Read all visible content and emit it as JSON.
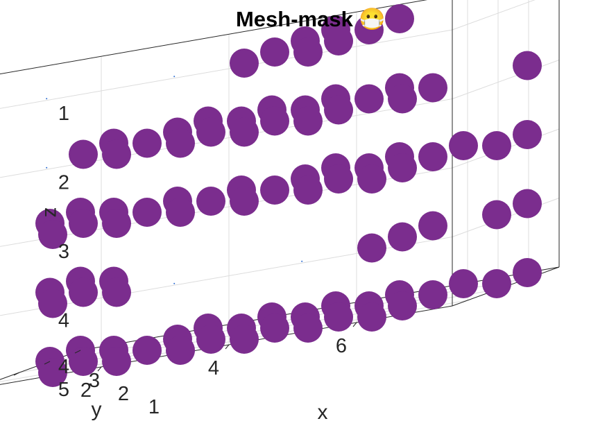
{
  "chart_data": {
    "type": "scatter",
    "title": "Mesh-mask 😷",
    "xlabel": "x",
    "ylabel": "y",
    "zlabel": "z",
    "z_reversed": true,
    "grid": true,
    "marker_color": "#7b2d8e",
    "x_ticks": [
      "2",
      "4",
      "6"
    ],
    "y_ticks": [
      "1",
      "2",
      "3",
      "4"
    ],
    "z_ticks": [
      "1",
      "2",
      "3",
      "4",
      "5"
    ],
    "points": [
      [
        4,
        1,
        1
      ],
      [
        4,
        2,
        1
      ],
      [
        4,
        3,
        1
      ],
      [
        4,
        4,
        1
      ],
      [
        5,
        1,
        1
      ],
      [
        5,
        2,
        1
      ],
      [
        5,
        3,
        1
      ],
      [
        5,
        4,
        1
      ],
      [
        1,
        2,
        2
      ],
      [
        1,
        3,
        2
      ],
      [
        2,
        1,
        2
      ],
      [
        2,
        2,
        2
      ],
      [
        2,
        3,
        2
      ],
      [
        2,
        4,
        2
      ],
      [
        3,
        1,
        2
      ],
      [
        3,
        2,
        2
      ],
      [
        3,
        3,
        2
      ],
      [
        3,
        4,
        2
      ],
      [
        4,
        1,
        2
      ],
      [
        4,
        2,
        2
      ],
      [
        4,
        3,
        2
      ],
      [
        4,
        4,
        2
      ],
      [
        5,
        1,
        2
      ],
      [
        5,
        2,
        2
      ],
      [
        5,
        3,
        2
      ],
      [
        5,
        4,
        2
      ],
      [
        6,
        2,
        2
      ],
      [
        6,
        3,
        2
      ],
      [
        7,
        4,
        2
      ],
      [
        0,
        4,
        3
      ],
      [
        0,
        3,
        3
      ],
      [
        1,
        2,
        3
      ],
      [
        1,
        1,
        3
      ],
      [
        1,
        3,
        3
      ],
      [
        2,
        1,
        3
      ],
      [
        2,
        2,
        3
      ],
      [
        2,
        3,
        3
      ],
      [
        3,
        1,
        3
      ],
      [
        3,
        2,
        3
      ],
      [
        3,
        3,
        3
      ],
      [
        4,
        1,
        3
      ],
      [
        4,
        2,
        3
      ],
      [
        4,
        3,
        3
      ],
      [
        4,
        4,
        3
      ],
      [
        5,
        1,
        3
      ],
      [
        5,
        2,
        3
      ],
      [
        5,
        3,
        3
      ],
      [
        5,
        4,
        3
      ],
      [
        6,
        1,
        3
      ],
      [
        6,
        2,
        3
      ],
      [
        6,
        3,
        3
      ],
      [
        6,
        4,
        3
      ],
      [
        7,
        4,
        3
      ],
      [
        7,
        3,
        3
      ],
      [
        0,
        4,
        4
      ],
      [
        0,
        3,
        4
      ],
      [
        1,
        2,
        4
      ],
      [
        1,
        3,
        4
      ],
      [
        1,
        1,
        4
      ],
      [
        2,
        1,
        4
      ],
      [
        6,
        1,
        4
      ],
      [
        6,
        2,
        4
      ],
      [
        6,
        3,
        4
      ],
      [
        7,
        4,
        4
      ],
      [
        7,
        3,
        4
      ],
      [
        0,
        4,
        5
      ],
      [
        0,
        3,
        5
      ],
      [
        1,
        1,
        5
      ],
      [
        1,
        2,
        5
      ],
      [
        1,
        3,
        5
      ],
      [
        2,
        1,
        5
      ],
      [
        2,
        2,
        5
      ],
      [
        2,
        3,
        5
      ],
      [
        2,
        4,
        5
      ],
      [
        3,
        1,
        5
      ],
      [
        3,
        2,
        5
      ],
      [
        3,
        3,
        5
      ],
      [
        3,
        4,
        5
      ],
      [
        4,
        1,
        5
      ],
      [
        4,
        2,
        5
      ],
      [
        4,
        3,
        5
      ],
      [
        4,
        4,
        5
      ],
      [
        5,
        1,
        5
      ],
      [
        5,
        2,
        5
      ],
      [
        5,
        3,
        5
      ],
      [
        5,
        4,
        5
      ],
      [
        6,
        1,
        5
      ],
      [
        6,
        2,
        5
      ],
      [
        6,
        3,
        5
      ],
      [
        6,
        4,
        5
      ],
      [
        7,
        4,
        5
      ],
      [
        7,
        3,
        5
      ]
    ]
  }
}
